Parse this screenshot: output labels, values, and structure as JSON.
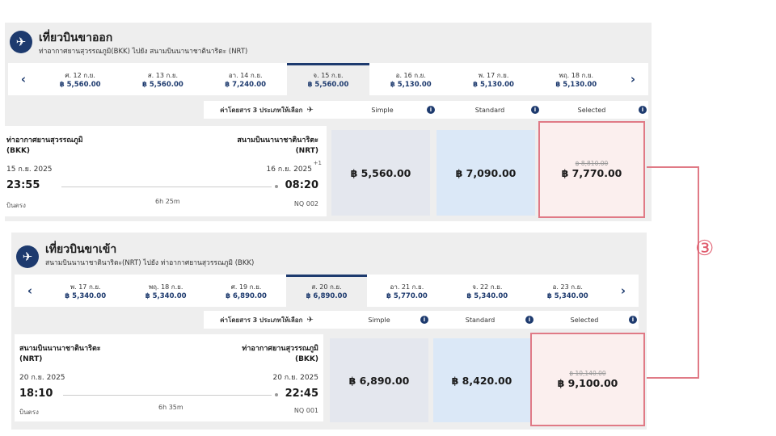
{
  "outbound": {
    "title": "เที่ยวบินขาออก",
    "route": "ท่าอากาศยานสุวรรณภูมิ(BKK) ไปยัง สนามบินนานาชาตินาริตะ (NRT)",
    "dates": [
      {
        "label": "ศ. 12 ก.ย.",
        "price": "฿ 5,560.00"
      },
      {
        "label": "ส. 13 ก.ย.",
        "price": "฿ 5,560.00"
      },
      {
        "label": "อา. 14 ก.ย.",
        "price": "฿ 7,240.00"
      },
      {
        "label": "จ. 15 ก.ย.",
        "price": "฿ 5,560.00"
      },
      {
        "label": "อ. 16 ก.ย.",
        "price": "฿ 5,130.00"
      },
      {
        "label": "พ. 17 ก.ย.",
        "price": "฿ 5,130.00"
      },
      {
        "label": "พฤ. 18 ก.ย.",
        "price": "฿ 5,130.00"
      }
    ],
    "fare_header_label": "ค่าโดยสาร 3 ประเภทให้เลือก",
    "fare_types": [
      "Simple",
      "Standard",
      "Selected"
    ],
    "origin_name": "ท่าอากาศยานสุวรรณภูมิ",
    "origin_code": "(BKK)",
    "dest_name": "สนามบินนานาชาตินาริตะ",
    "dest_code": "(NRT)",
    "depart_date": "15 ก.ย. 2025",
    "arrive_date": "16 ก.ย. 2025",
    "day_offset": "+1",
    "depart_time": "23:55",
    "arrive_time": "08:20",
    "flight_type": "บินตรง",
    "duration": "6h 25m",
    "flight_no": "NQ 002",
    "simple_price": "฿ 5,560.00",
    "standard_price": "฿ 7,090.00",
    "selected_old_price": "฿ 8,810.00",
    "selected_price": "฿ 7,770.00"
  },
  "inbound": {
    "title": "เที่ยวบินขาเข้า",
    "route": "สนามบินนานาชาตินาริตะ(NRT) ไปยัง ท่าอากาศยานสุวรรณภูมิ (BKK)",
    "dates": [
      {
        "label": "พ. 17 ก.ย.",
        "price": "฿ 5,340.00"
      },
      {
        "label": "พฤ. 18 ก.ย.",
        "price": "฿ 5,340.00"
      },
      {
        "label": "ศ. 19 ก.ย.",
        "price": "฿ 6,890.00"
      },
      {
        "label": "ส. 20 ก.ย.",
        "price": "฿ 6,890.00"
      },
      {
        "label": "อา. 21 ก.ย.",
        "price": "฿ 5,770.00"
      },
      {
        "label": "จ. 22 ก.ย.",
        "price": "฿ 5,340.00"
      },
      {
        "label": "อ. 23 ก.ย.",
        "price": "฿ 5,340.00"
      }
    ],
    "fare_header_label": "ค่าโดยสาร 3 ประเภทให้เลือก",
    "fare_types": [
      "Simple",
      "Standard",
      "Selected"
    ],
    "origin_name": "สนามบินนานาชาตินาริตะ",
    "origin_code": "(NRT)",
    "dest_name": "ท่าอากาศยานสุวรรณภูมิ",
    "dest_code": "(BKK)",
    "depart_date": "20 ก.ย. 2025",
    "arrive_date": "20 ก.ย. 2025",
    "depart_time": "18:10",
    "arrive_time": "22:45",
    "flight_type": "บินตรง",
    "duration": "6h 35m",
    "flight_no": "NQ 001",
    "simple_price": "฿ 6,890.00",
    "standard_price": "฿ 8,420.00",
    "selected_old_price": "฿ 10,140.00",
    "selected_price": "฿ 9,100.00"
  },
  "nav": {
    "prev": "‹",
    "next": "›"
  },
  "info_icon": "i",
  "plane_icon": "✈",
  "callout": "③",
  "colors": {
    "brand": "#1d3a6e",
    "highlight": "#e07a86",
    "simple_bg": "#e4e7ee",
    "standard_bg": "#dbe8f7",
    "selected_bg": "#fbefee"
  }
}
